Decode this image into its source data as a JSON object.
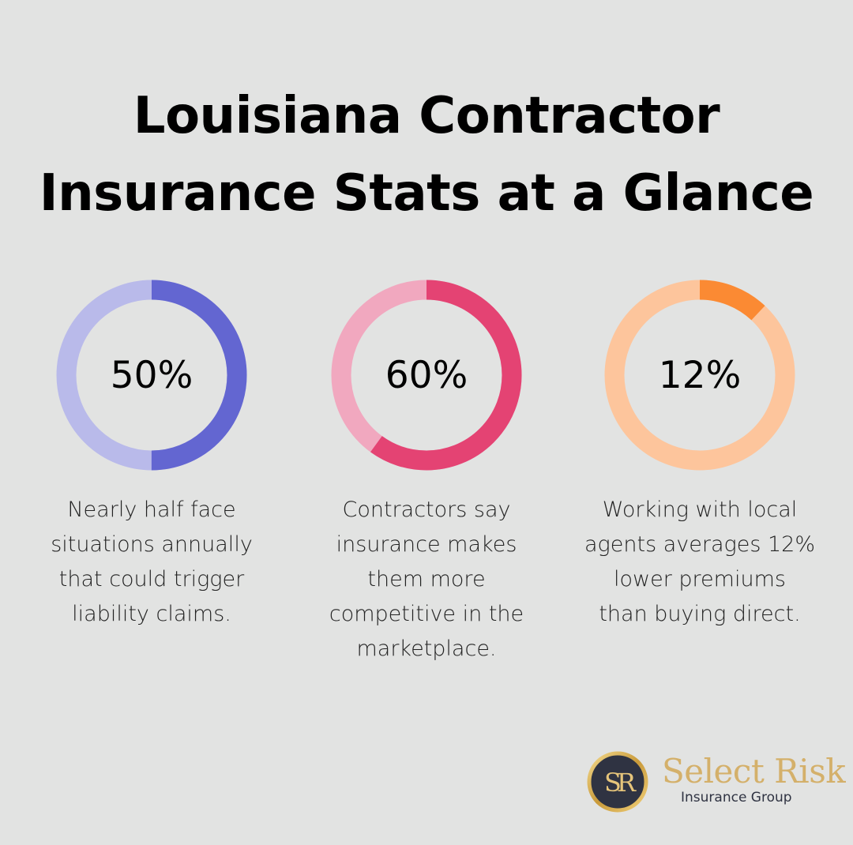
{
  "title": {
    "line1": "Louisiana Contractor",
    "line2": "Insurance Stats at a Glance"
  },
  "chart_data": {
    "type": "donut",
    "items": [
      {
        "value": 50,
        "label": "50%",
        "description": [
          "Nearly half face",
          "situations annually",
          "that could trigger",
          "liability claims."
        ],
        "color": "#6366d1",
        "track_color": "#b9baea"
      },
      {
        "value": 60,
        "label": "60%",
        "description": [
          "Contractors say",
          "insurance makes",
          "them more",
          "competitive in the",
          "marketplace."
        ],
        "color": "#e44373",
        "track_color": "#f1a8bf"
      },
      {
        "value": 12,
        "label": "12%",
        "description": [
          "Working with local",
          "agents averages 12%",
          "lower premiums",
          "than buying direct."
        ],
        "color": "#fb8a33",
        "track_color": "#fdc59c"
      }
    ]
  },
  "logo": {
    "monogram": "SR",
    "name": "Select Risk",
    "subtitle": "Insurance Group"
  }
}
